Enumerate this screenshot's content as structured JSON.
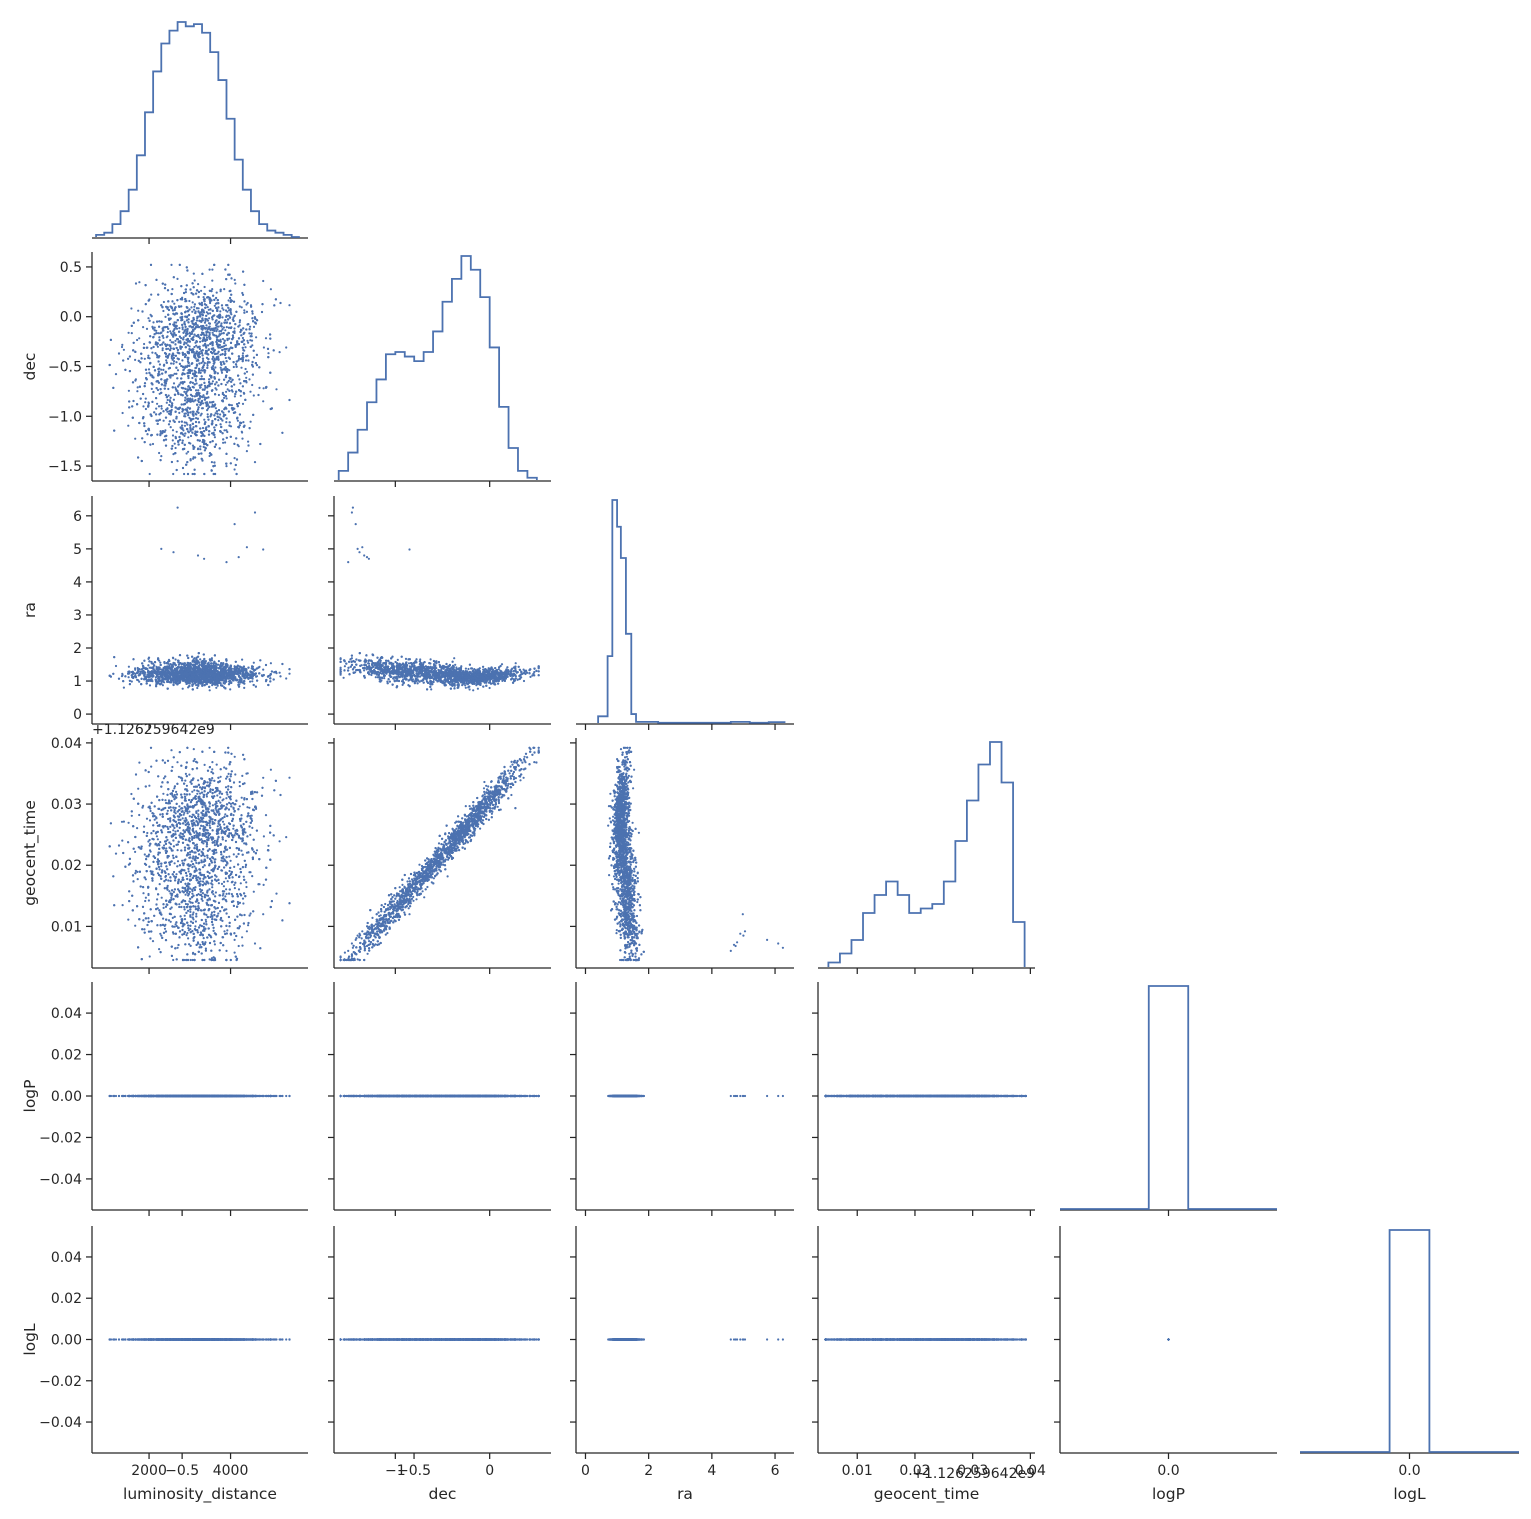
{
  "chart_data": {
    "type": "scatter",
    "title": "",
    "variables": [
      "luminosity_distance",
      "dec",
      "ra",
      "geocent_time",
      "logP",
      "logL"
    ],
    "axis_labels": [
      "luminosity_distance",
      "dec",
      "ra",
      "geocent_time",
      "logP",
      "logL"
    ],
    "axis_offset_labels": {
      "geocent_time": "+1.126259642e9"
    },
    "ranges": {
      "luminosity_distance": [
        600,
        5900
      ],
      "dec": [
        -1.65,
        0.65
      ],
      "ra": [
        -0.3,
        6.6
      ],
      "geocent_time": [
        0.0032,
        0.0408
      ],
      "logP": [
        -0.055,
        0.055
      ],
      "logL": [
        -0.055,
        0.055
      ]
    },
    "ticks": {
      "luminosity_distance": [
        2000,
        4000
      ],
      "dec": [
        -1.5,
        -1.0,
        -0.5,
        0.0,
        0.5
      ],
      "dec_x": [
        -1,
        0
      ],
      "ra": [
        0,
        1,
        2,
        3,
        4,
        5,
        6
      ],
      "ra_x": [
        0,
        2,
        4,
        6
      ],
      "geocent_time": [
        0.01,
        0.02,
        0.03,
        0.04
      ],
      "logP_y": [
        -0.04,
        -0.02,
        0.0,
        0.02,
        0.04
      ],
      "logP_x": [
        -0.5,
        0.0,
        0.5
      ],
      "logL_y": [
        -0.04,
        -0.02,
        0.0,
        0.02,
        0.04
      ],
      "logL_x": [
        -0.5,
        0.0,
        0.5
      ]
    },
    "tick_labels": {
      "luminosity_distance": [
        "2000",
        "4000"
      ],
      "dec_y": [
        "0.5",
        "0.0",
        "−0.5",
        "−1.0",
        "−1.5"
      ],
      "dec_x": [
        "−1",
        "0"
      ],
      "ra_y": [
        "6",
        "5",
        "4",
        "3",
        "2",
        "1",
        "0"
      ],
      "ra_x": [
        "0",
        "2",
        "4",
        "6"
      ],
      "geocent_time_y": [
        "0.04",
        "0.03",
        "0.02",
        "0.01"
      ],
      "geocent_time_x": [
        "0.01",
        "0.02",
        "0.03",
        "0.04"
      ],
      "logP_y": [
        "0.04",
        "0.02",
        "0.00",
        "−0.02",
        "−0.04"
      ],
      "logP_x": [
        "−0.5",
        "0.0",
        "0.5"
      ],
      "logL_y": [
        "0.04",
        "0.02",
        "0.00",
        "−0.02",
        "−0.04"
      ],
      "logL_x": [
        "−0.5",
        "0.0",
        "0.5"
      ]
    },
    "histograms": {
      "luminosity_distance": {
        "x": [
          800,
          1000,
          1200,
          1400,
          1600,
          1800,
          2000,
          2200,
          2400,
          2600,
          2800,
          3000,
          3200,
          3400,
          3600,
          3800,
          4000,
          4200,
          4400,
          4600,
          4800,
          5000,
          5200,
          5400,
          5600
        ],
        "counts": [
          1,
          2,
          6,
          12,
          22,
          38,
          58,
          77,
          90,
          96,
          100,
          98,
          99,
          95,
          86,
          73,
          55,
          36,
          22,
          12,
          6,
          3,
          2,
          1,
          0
        ]
      },
      "dec": {
        "x": [
          -1.55,
          -1.45,
          -1.35,
          -1.25,
          -1.15,
          -1.05,
          -0.95,
          -0.85,
          -0.75,
          -0.65,
          -0.55,
          -0.45,
          -0.35,
          -0.25,
          -0.15,
          -0.05,
          0.05,
          0.15,
          0.25,
          0.35,
          0.45
        ],
        "counts": [
          4,
          12,
          22,
          34,
          44,
          55,
          56,
          54,
          52,
          56,
          65,
          78,
          88,
          98,
          92,
          80,
          58,
          32,
          14,
          4,
          1
        ]
      },
      "ra": {
        "x": [
          0.6,
          0.8,
          1.0,
          1.2,
          1.4,
          1.6,
          1.8,
          2.2,
          4.8,
          5.0,
          6.0
        ],
        "counts": [
          3,
          30,
          100,
          74,
          40,
          4,
          1,
          0.3,
          0.5,
          0.5,
          0.4
        ]
      },
      "geocent_time": {
        "x": [
          0.006,
          0.008,
          0.01,
          0.012,
          0.014,
          0.016,
          0.018,
          0.02,
          0.022,
          0.024,
          0.026,
          0.028,
          0.03,
          0.032,
          0.034,
          0.036,
          0.038
        ],
        "counts": [
          2,
          6,
          12,
          24,
          32,
          38,
          32,
          24,
          26,
          28,
          38,
          56,
          74,
          90,
          100,
          82,
          20
        ]
      },
      "logP": {
        "x": [
          0.0
        ],
        "counts": [
          100
        ]
      },
      "logL": {
        "x": [
          0.0
        ],
        "counts": [
          100
        ]
      }
    }
  }
}
